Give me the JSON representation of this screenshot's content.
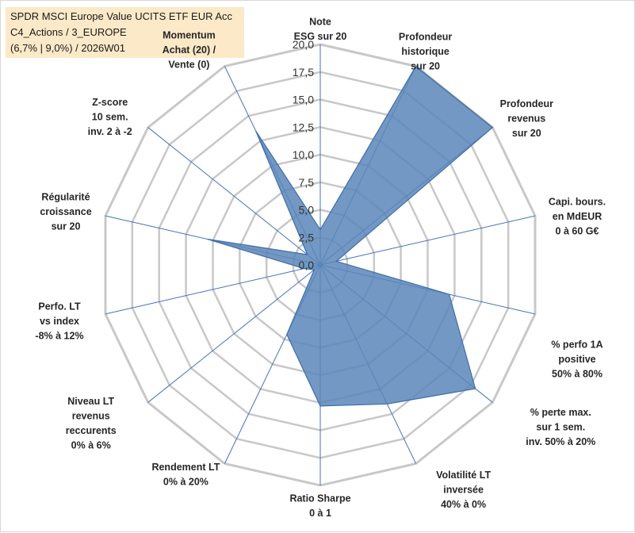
{
  "title": {
    "line1": "SPDR MSCI Europe Value UCITS ETF EUR Acc",
    "line2": "C4_Actions / 3_EUROPE",
    "line3": "(6,7% | 9,0%) / 2026W01"
  },
  "colors": {
    "fill": "#5b86b8",
    "stroke": "#3f6ea8",
    "grid": "#c8c8c8",
    "spoke": "#4472c4",
    "title_bg": "#fce9c7",
    "momentum_text": "#bfa56a"
  },
  "chart_data": {
    "type": "radar",
    "rmin": 0,
    "rmax": 20,
    "ticks": [
      "0,0",
      "2,5",
      "5,0",
      "7,5",
      "10,0",
      "12,5",
      "15,0",
      "17,5",
      "20,0"
    ],
    "tick_values": [
      0,
      2.5,
      5,
      7.5,
      10,
      12.5,
      15,
      17.5,
      20
    ],
    "axes": [
      {
        "label": [
          "Note",
          "ESG sur 20"
        ],
        "value": 3.2
      },
      {
        "label": [
          "Profondeur",
          "historique",
          "sur 20"
        ],
        "value": 20
      },
      {
        "label": [
          "Profondeur",
          "revenus",
          "sur 20"
        ],
        "value": 20
      },
      {
        "label": [
          "Capi. bours.",
          "en MdEUR",
          "0 à 60 G€"
        ],
        "value": 1.5
      },
      {
        "label": [
          "% perfo 1A",
          "positive",
          "50% à 80%"
        ],
        "value": 12
      },
      {
        "label": [
          "% perte max.",
          "sur 1 sem.",
          "inv. 50% à 20%"
        ],
        "value": 18
      },
      {
        "label": [
          "Volatilité LT",
          "inversée",
          "40% à 0%"
        ],
        "value": 14
      },
      {
        "label": [
          "Ratio Sharpe",
          "0 à 1"
        ],
        "value": 12.8
      },
      {
        "label": [
          "Rendement LT",
          "0% à 20%"
        ],
        "value": 7
      },
      {
        "label": [
          "Niveau LT",
          "revenus",
          "reccurents",
          "0% à 6%"
        ],
        "value": 0.7
      },
      {
        "label": [
          "Perfo. LT",
          "vs index",
          "-8% à 12%"
        ],
        "value": 1.5
      },
      {
        "label": [
          "Régularité",
          "croissance",
          "sur 20"
        ],
        "value": 10.5
      },
      {
        "label": [
          "Z-score",
          "10 sem.",
          "inv. 2 à -2"
        ],
        "value": 1.5
      },
      {
        "label": [
          "Momentum",
          "Achat (20) /",
          "Vente (0)"
        ],
        "value": 13.5
      }
    ]
  }
}
